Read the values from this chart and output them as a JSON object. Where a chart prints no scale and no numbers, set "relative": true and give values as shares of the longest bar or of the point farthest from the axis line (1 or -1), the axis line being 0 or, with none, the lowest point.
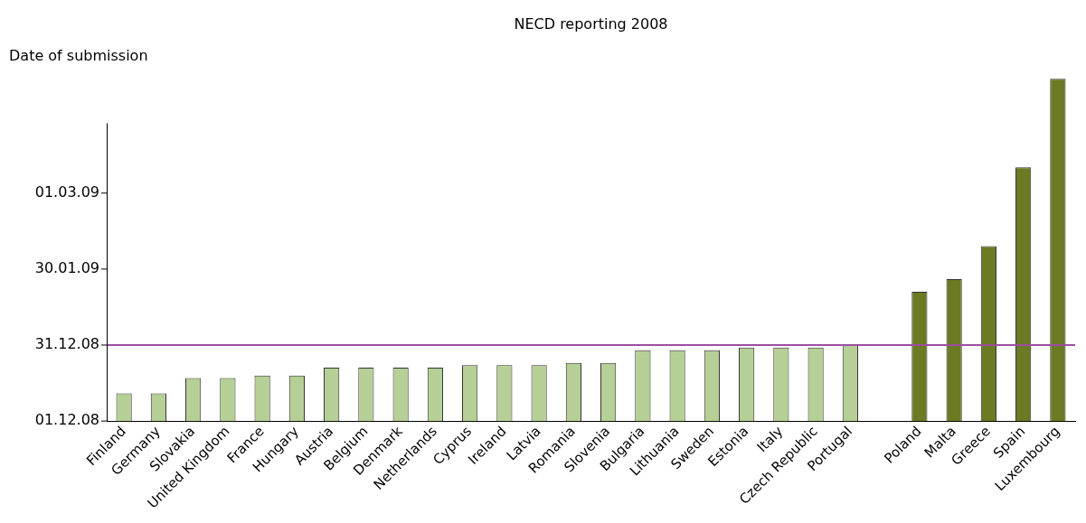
{
  "chart_data": {
    "type": "bar",
    "title": "NECD reporting 2008",
    "ylabel": "Date of submission",
    "relative": true,
    "categories": [
      "Finland",
      "Germany",
      "Slovakia",
      "United Kingdom",
      "France",
      "Hungary",
      "Austria",
      "Belgium",
      "Denmark",
      "Netherlands",
      "Cyprus",
      "Ireland",
      "Latvia",
      "Romania",
      "Slovenia",
      "Bulgaria",
      "Lithuania",
      "Sweden",
      "Estonia",
      "Italy",
      "Czech Republic",
      "Portugal",
      null,
      "Poland",
      "Malta",
      "Greece",
      "Spain",
      "Luxembourg"
    ],
    "values": [
      0.081,
      0.081,
      0.126,
      0.126,
      0.133,
      0.133,
      0.156,
      0.156,
      0.156,
      0.156,
      0.163,
      0.163,
      0.163,
      0.17,
      0.17,
      0.207,
      0.207,
      0.207,
      0.215,
      0.215,
      0.215,
      0.222,
      null,
      0.378,
      0.415,
      0.511,
      0.741,
      1
    ],
    "colors": [
      "#b5cf96",
      "#b5cf96",
      "#b5cf96",
      "#b5cf96",
      "#b5cf96",
      "#b5cf96",
      "#b5cf96",
      "#b5cf96",
      "#b5cf96",
      "#b5cf96",
      "#b5cf96",
      "#b5cf96",
      "#b5cf96",
      "#b5cf96",
      "#b5cf96",
      "#b5cf96",
      "#b5cf96",
      "#b5cf96",
      "#b5cf96",
      "#b5cf96",
      "#b5cf96",
      "#b5cf96",
      "#b5cf96",
      "#6b7a23",
      "#6b7a23",
      "#6b7a23",
      "#6b7a23",
      "#6b7a23"
    ],
    "annotations": [
      "01.12.08",
      "31.12.08",
      "30.01.09",
      "01.03.09"
    ],
    "ref_lines": [
      {
        "axis": "y",
        "value": 0.222,
        "color": "#9b4fa0"
      }
    ],
    "grid": false,
    "legend": false
  }
}
